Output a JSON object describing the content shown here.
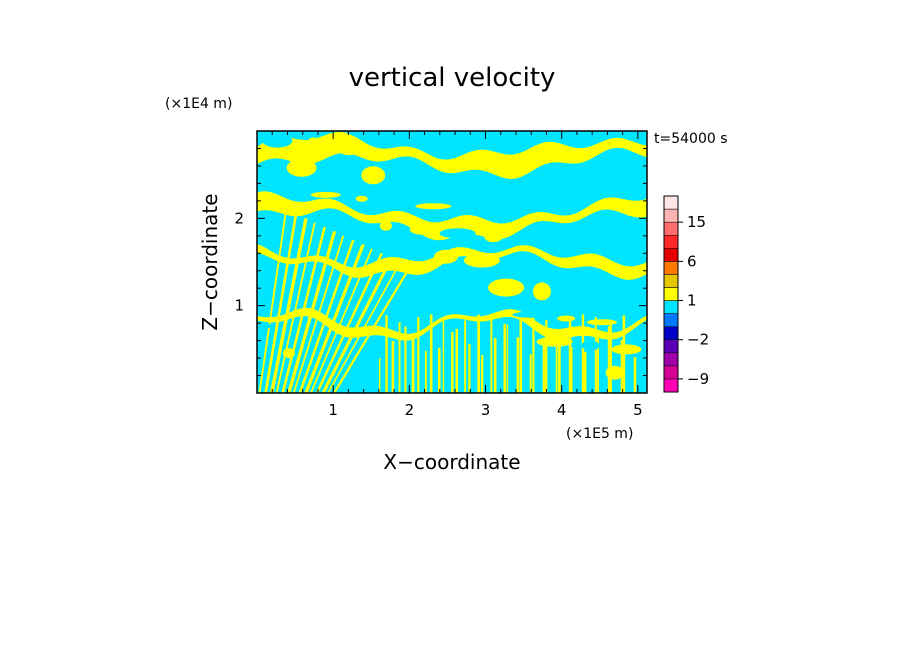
{
  "chart_data": {
    "type": "heatmap",
    "title": "vertical velocity",
    "xlabel": "X−coordinate",
    "ylabel": "Z−coordinate",
    "x_scale_label": "(×1E5 m)",
    "y_scale_label": "(×1E4 m)",
    "time_label": "t=54000 s",
    "xlim": [
      0,
      5.12
    ],
    "ylim": [
      0,
      3.0
    ],
    "x_ticks": [
      1,
      2,
      3,
      4,
      5
    ],
    "x_tick_labels": [
      "1",
      "2",
      "3",
      "4",
      "5"
    ],
    "y_ticks": [
      1,
      2
    ],
    "y_tick_labels": [
      "1",
      "2"
    ],
    "field_colors": {
      "negative": "#00e5ff",
      "positive": "#ffff00"
    },
    "colorbar": {
      "levels": [
        -12,
        -9,
        -6,
        -4,
        -2,
        -1,
        0,
        1,
        2,
        4,
        6,
        9,
        12,
        15,
        18,
        22
      ],
      "colors": [
        "#ff00b4",
        "#d40096",
        "#a000aa",
        "#5a00b4",
        "#0000c8",
        "#0078ff",
        "#00e5ff",
        "#ffff00",
        "#e6c800",
        "#ff7800",
        "#e60000",
        "#ff2828",
        "#ff6e6e",
        "#ffb4b4",
        "#ffe6e6"
      ],
      "tick_values": [
        -9,
        -2,
        1,
        6,
        15
      ],
      "tick_labels": [
        "−9",
        "−2",
        "1",
        "6",
        "15"
      ]
    },
    "bands": [
      {
        "center": 2.72,
        "amp": 0.1,
        "width": 0.28,
        "freq": 1.6,
        "phase": 0.0
      },
      {
        "center": 2.02,
        "amp": 0.14,
        "width": 0.22,
        "freq": 1.3,
        "phase": 1.1
      },
      {
        "center": 1.52,
        "amp": 0.1,
        "width": 0.16,
        "freq": 1.8,
        "phase": 2.0
      },
      {
        "center": 0.78,
        "amp": 0.12,
        "width": 0.12,
        "freq": 2.4,
        "phase": 0.6
      }
    ]
  }
}
